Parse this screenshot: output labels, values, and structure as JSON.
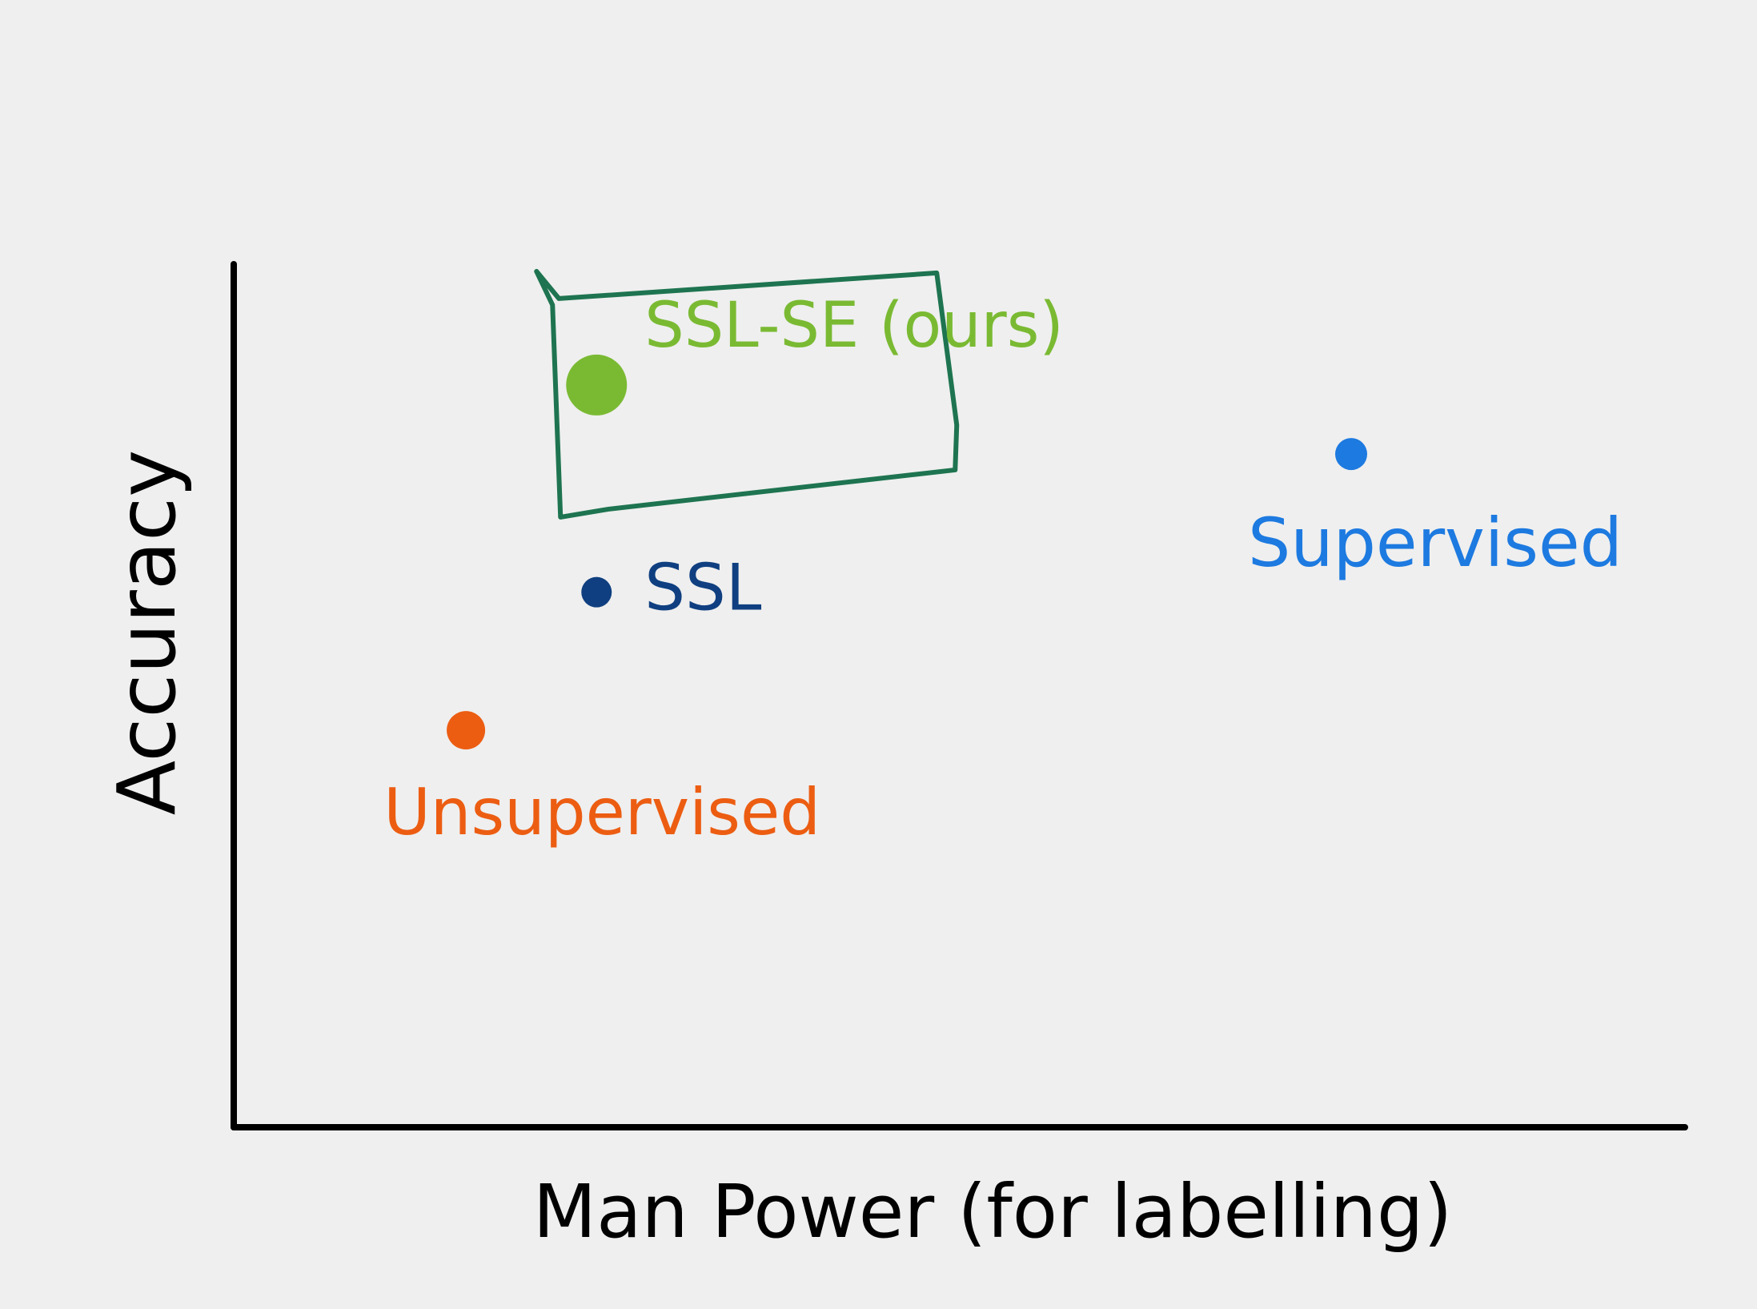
{
  "chart_data": {
    "type": "scatter",
    "title": "",
    "xlabel": "Man Power (for labelling)",
    "ylabel": "Accuracy",
    "xlim": [
      0,
      10
    ],
    "ylim": [
      0,
      10
    ],
    "grid": false,
    "axis_tick_labels": false,
    "points": [
      {
        "label": "SSL-SE (ours)",
        "x": 2.5,
        "y": 8.6,
        "color": "#7aba33",
        "highlighted": true
      },
      {
        "label": "SSL",
        "x": 2.5,
        "y": 6.2,
        "color": "#0f3f80"
      },
      {
        "label": "Unsupervised",
        "x": 1.6,
        "y": 4.6,
        "color": "#ec5d12"
      },
      {
        "label": "Supervised",
        "x": 7.7,
        "y": 7.8,
        "color": "#1d7ae0"
      }
    ],
    "highlight_box_color": "#1e7450",
    "axis_color": "#000000"
  }
}
